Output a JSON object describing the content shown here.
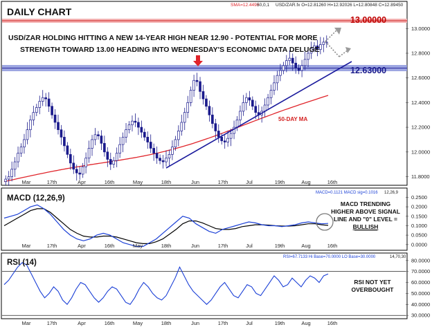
{
  "header": {
    "title": "DAILY CHART",
    "sma_readout": "SMA=12.4498",
    "sma_params": "50,0,1",
    "ohlc_readout": "USD/ZAR.fx O=12.81260 H=12.92026 L=12.80848 C=12.89450"
  },
  "annotations": {
    "headline_line1": "USD/ZAR HOLDING HITTING A NEW 14-YEAR HIGH NEAR 12.90 - POTENTIAL FOR MORE",
    "headline_line2": "STRENGTH TOWARD 13.00 HEADING INTO WEDNESDAY'S ECONOMIC DATA DELUGE",
    "level_13": "13.00000",
    "level_1263": "12.63000",
    "ma_label": "50-DAY MA",
    "macd_note_line1": "MACD TRENDING",
    "macd_note_line2": "HIGHER ABOVE SIGNAL",
    "macd_note_line3": "LINE AND \"0\" LEVEL =",
    "macd_note_line4": "BULLISH",
    "rsi_note_line1": "RSI NOT YET",
    "rsi_note_line2": "OVERBOUGHT"
  },
  "colors": {
    "candle": "#1a1a8c",
    "ma": "#e0242a",
    "macd": "#1a3fd6",
    "signal": "#000000",
    "rsi": "#1a3fd6",
    "level_13_band": "#f4b4b4",
    "level_1263_band": "#8c96dc",
    "arrow": "#e0242a",
    "trendline": "#1a1a9c",
    "level_13_text": "#c00000",
    "level_1263_text": "#1a1a8c"
  },
  "chart_data": [
    {
      "type": "candlestick",
      "title": "DAILY CHART",
      "symbol": "USD/ZAR.fx",
      "x_tick_labels": [
        "Mar",
        "17th",
        "Apr",
        "16th",
        "May",
        "18th",
        "Jun",
        "17th",
        "Jul",
        "19th",
        "Aug",
        "16th"
      ],
      "y_ticks": [
        "13.0000",
        "12.8000",
        "12.6000",
        "12.4000",
        "12.2000",
        "12.0000",
        "11.8000"
      ],
      "ylim": [
        11.73,
        13.08
      ],
      "close": [
        11.78,
        11.8,
        11.86,
        11.92,
        11.99,
        12.04,
        12.1,
        12.18,
        12.26,
        12.32,
        12.36,
        12.41,
        12.44,
        12.43,
        12.37,
        12.3,
        12.24,
        12.18,
        12.12,
        12.05,
        11.98,
        11.91,
        11.86,
        11.83,
        11.82,
        11.88,
        11.95,
        12.03,
        12.1,
        12.14,
        12.13,
        12.07,
        12.0,
        11.94,
        11.9,
        11.93,
        11.99,
        12.06,
        12.12,
        12.18,
        12.22,
        12.25,
        12.24,
        12.2,
        12.16,
        12.12,
        12.08,
        12.03,
        11.99,
        11.95,
        11.93,
        11.92,
        11.95,
        11.98,
        12.04,
        12.1,
        12.17,
        12.24,
        12.32,
        12.4,
        12.5,
        12.58,
        12.57,
        12.49,
        12.43,
        12.37,
        12.3,
        12.23,
        12.17,
        12.12,
        12.09,
        12.08,
        12.11,
        12.15,
        12.2,
        12.26,
        12.33,
        12.4,
        12.44,
        12.42,
        12.37,
        12.32,
        12.3,
        12.33,
        12.38,
        12.44,
        12.5,
        12.56,
        12.62,
        12.66,
        12.7,
        12.74,
        12.76,
        12.72,
        12.68,
        12.66,
        12.7,
        12.75,
        12.8,
        12.84,
        12.86,
        12.83,
        12.87,
        12.89,
        12.89
      ],
      "sma50_endpoints": [
        11.76,
        12.45
      ],
      "levels": [
        13.0,
        12.63
      ],
      "trendline": [
        {
          "x": "May 18th",
          "y": 11.74
        },
        {
          "x": "Aug 16th",
          "y": 12.67
        }
      ]
    },
    {
      "type": "line",
      "title": "MACD (12,26,9)",
      "readout": "MACD=0.1121 MACD sig=0.1016",
      "params": "12,26,9",
      "series_names": [
        "MACD",
        "signal"
      ],
      "y_ticks": [
        "0.2500",
        "0.2000",
        "0.1500",
        "0.1000",
        "0.0500",
        "0.0000"
      ],
      "ylim": [
        -0.03,
        0.27
      ],
      "macd": [
        0.14,
        0.15,
        0.16,
        0.18,
        0.2,
        0.21,
        0.19,
        0.16,
        0.12,
        0.08,
        0.05,
        0.03,
        0.02,
        0.03,
        0.05,
        0.06,
        0.05,
        0.03,
        0.01,
        0.0,
        -0.01,
        -0.01,
        0.01,
        0.03,
        0.06,
        0.09,
        0.12,
        0.15,
        0.14,
        0.11,
        0.09,
        0.07,
        0.06,
        0.08,
        0.09,
        0.1,
        0.11,
        0.12,
        0.115,
        0.105,
        0.1,
        0.1,
        0.095,
        0.1,
        0.105,
        0.115,
        0.12,
        0.115,
        0.11,
        0.112
      ],
      "signal": [
        0.1,
        0.12,
        0.14,
        0.16,
        0.18,
        0.19,
        0.19,
        0.17,
        0.14,
        0.11,
        0.08,
        0.06,
        0.045,
        0.04,
        0.04,
        0.045,
        0.045,
        0.04,
        0.03,
        0.02,
        0.01,
        0.005,
        0.005,
        0.015,
        0.03,
        0.055,
        0.08,
        0.11,
        0.125,
        0.125,
        0.115,
        0.1,
        0.085,
        0.08,
        0.08,
        0.085,
        0.095,
        0.1,
        0.105,
        0.105,
        0.103,
        0.1,
        0.098,
        0.098,
        0.1,
        0.105,
        0.11,
        0.11,
        0.105,
        0.1016
      ]
    },
    {
      "type": "line",
      "title": "RSI (14)",
      "readout": "RSI=67.7133 Hi Base=70.0000 LO Base=30.0000",
      "params": "14,70,30",
      "y_ticks": [
        "80.0000",
        "70.0000",
        "60.0000",
        "50.0000",
        "40.0000",
        "30.0000"
      ],
      "ylim": [
        27,
        83
      ],
      "levels": [
        70,
        30
      ],
      "rsi": [
        58,
        62,
        68,
        74,
        78,
        76,
        68,
        60,
        52,
        46,
        50,
        56,
        52,
        44,
        40,
        46,
        54,
        60,
        58,
        52,
        46,
        42,
        46,
        52,
        56,
        54,
        48,
        42,
        40,
        46,
        54,
        60,
        56,
        50,
        46,
        44,
        48,
        56,
        64,
        74,
        66,
        58,
        52,
        48,
        44,
        40,
        44,
        50,
        56,
        60,
        54,
        48,
        46,
        52,
        58,
        56,
        50,
        48,
        54,
        60,
        66,
        62,
        56,
        58,
        64,
        60,
        56,
        62,
        66,
        64,
        60,
        66,
        67.7
      ]
    }
  ]
}
